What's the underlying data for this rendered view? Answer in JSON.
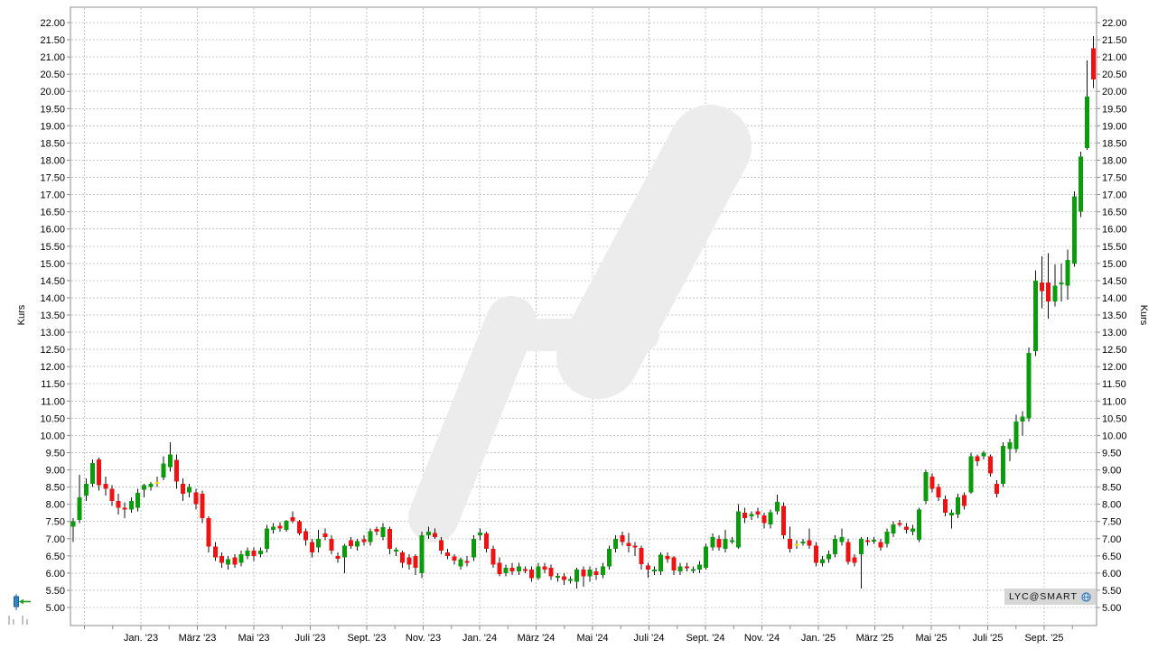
{
  "chart_data": {
    "type": "candlestick",
    "title": "",
    "ylabel": "Kurs",
    "ylim": [
      5.0,
      22.0
    ],
    "y_step": 0.5,
    "y_tick_format": "0.00",
    "grid": "dashed, both axes, light gray",
    "legend_position": "none",
    "x_tick_labels": [
      "Jan. '23",
      "März '23",
      "Mai '23",
      "Juli '23",
      "Sept. '23",
      "Nov. '23",
      "Jan. '24",
      "März '24",
      "Mai '24",
      "Juli '24",
      "Sept. '24",
      "Nov. '24",
      "Jan. '25",
      "März '25",
      "Mai '25",
      "Juli '25",
      "Sept. '25"
    ],
    "interval": "weekly",
    "colors": {
      "up": "#0c9b0c",
      "down": "#ee1212",
      "unchanged": "#f5e400",
      "wick": "#111111",
      "grid": "#c6c6c6",
      "axis": "#8c8c8c",
      "text": "#000000",
      "watermark": "#ececec",
      "background": "#ffffff",
      "badge_bg": "#d6d6d6"
    },
    "candles_format": [
      "open",
      "high",
      "low",
      "close"
    ],
    "candles": [
      [
        7.35,
        7.6,
        6.9,
        7.5
      ],
      [
        7.55,
        8.85,
        7.45,
        8.2
      ],
      [
        8.25,
        8.75,
        8.1,
        8.6
      ],
      [
        8.6,
        9.3,
        8.5,
        9.2
      ],
      [
        9.3,
        9.35,
        8.4,
        8.55
      ],
      [
        8.6,
        8.8,
        8.25,
        8.45
      ],
      [
        8.45,
        8.55,
        7.95,
        8.1
      ],
      [
        8.1,
        8.3,
        7.7,
        7.9
      ],
      [
        7.9,
        8.05,
        7.6,
        7.85
      ],
      [
        7.85,
        8.2,
        7.75,
        8.1
      ],
      [
        7.9,
        8.45,
        7.8,
        8.33
      ],
      [
        8.42,
        8.6,
        8.2,
        8.55
      ],
      [
        8.5,
        8.65,
        8.4,
        8.6
      ],
      [
        8.65,
        8.8,
        8.5,
        8.65
      ],
      [
        8.78,
        9.4,
        8.7,
        9.18
      ],
      [
        9.08,
        9.8,
        8.95,
        9.45
      ],
      [
        9.29,
        9.45,
        8.45,
        8.66
      ],
      [
        8.6,
        8.75,
        8.1,
        8.3
      ],
      [
        8.35,
        8.6,
        8.2,
        8.5
      ],
      [
        8.35,
        8.45,
        7.85,
        8.0
      ],
      [
        8.3,
        8.4,
        7.45,
        7.6
      ],
      [
        7.6,
        7.65,
        6.6,
        6.77
      ],
      [
        6.77,
        6.9,
        6.35,
        6.45
      ],
      [
        6.5,
        6.6,
        6.15,
        6.3
      ],
      [
        6.25,
        6.5,
        6.1,
        6.4
      ],
      [
        6.45,
        6.55,
        6.15,
        6.25
      ],
      [
        6.3,
        6.65,
        6.2,
        6.55
      ],
      [
        6.5,
        6.75,
        6.4,
        6.65
      ],
      [
        6.65,
        6.75,
        6.35,
        6.5
      ],
      [
        6.55,
        6.75,
        6.45,
        6.65
      ],
      [
        6.7,
        7.4,
        6.6,
        7.3
      ],
      [
        7.25,
        7.45,
        7.15,
        7.35
      ],
      [
        7.38,
        7.48,
        7.2,
        7.3
      ],
      [
        7.25,
        7.55,
        7.2,
        7.52
      ],
      [
        7.62,
        7.8,
        7.45,
        7.5
      ],
      [
        7.5,
        7.55,
        7.1,
        7.15
      ],
      [
        7.22,
        7.3,
        6.8,
        6.95
      ],
      [
        6.9,
        7.0,
        6.45,
        6.6
      ],
      [
        6.75,
        7.25,
        6.6,
        7.0
      ],
      [
        7.15,
        7.3,
        6.95,
        7.05
      ],
      [
        7.0,
        7.1,
        6.55,
        6.65
      ],
      [
        6.5,
        6.6,
        6.3,
        6.42
      ],
      [
        6.45,
        6.85,
        6.0,
        6.8
      ],
      [
        6.95,
        7.05,
        6.7,
        6.78
      ],
      [
        6.77,
        7.0,
        6.65,
        6.93
      ],
      [
        6.98,
        7.1,
        6.8,
        6.9
      ],
      [
        6.9,
        7.3,
        6.8,
        7.22
      ],
      [
        7.28,
        7.35,
        7.1,
        7.2
      ],
      [
        7.05,
        7.45,
        6.95,
        7.33
      ],
      [
        7.28,
        7.35,
        6.55,
        6.7
      ],
      [
        6.62,
        6.75,
        6.5,
        6.68
      ],
      [
        6.6,
        6.65,
        6.15,
        6.3
      ],
      [
        6.45,
        6.55,
        6.1,
        6.25
      ],
      [
        6.5,
        6.55,
        5.95,
        6.15
      ],
      [
        6.0,
        7.2,
        5.85,
        7.1
      ],
      [
        7.1,
        7.35,
        7.0,
        7.2
      ],
      [
        7.17,
        7.3,
        7.0,
        7.05
      ],
      [
        6.95,
        7.05,
        6.55,
        6.65
      ],
      [
        6.6,
        6.7,
        6.4,
        6.5
      ],
      [
        6.48,
        6.55,
        6.25,
        6.36
      ],
      [
        6.2,
        6.45,
        6.1,
        6.4
      ],
      [
        6.35,
        6.5,
        6.2,
        6.3
      ],
      [
        6.45,
        7.1,
        6.35,
        7.0
      ],
      [
        7.1,
        7.3,
        6.95,
        7.18
      ],
      [
        7.15,
        7.2,
        6.6,
        6.7
      ],
      [
        6.7,
        6.8,
        6.15,
        6.25
      ],
      [
        6.3,
        6.45,
        5.9,
        5.97
      ],
      [
        6.0,
        6.25,
        5.9,
        6.15
      ],
      [
        6.15,
        6.3,
        5.95,
        6.05
      ],
      [
        6.05,
        6.3,
        5.95,
        6.2
      ],
      [
        6.12,
        6.2,
        6.0,
        6.08
      ],
      [
        6.1,
        6.2,
        5.75,
        5.85
      ],
      [
        5.85,
        6.3,
        5.8,
        6.2
      ],
      [
        6.2,
        6.3,
        6.0,
        6.1
      ],
      [
        6.15,
        6.25,
        5.8,
        5.9
      ],
      [
        5.88,
        6.0,
        5.75,
        5.92
      ],
      [
        5.9,
        6.0,
        5.65,
        5.8
      ],
      [
        5.78,
        5.9,
        5.7,
        5.82
      ],
      [
        5.75,
        6.15,
        5.55,
        6.1
      ],
      [
        6.1,
        6.2,
        5.6,
        5.9
      ],
      [
        5.9,
        6.2,
        5.75,
        6.1
      ],
      [
        6.05,
        6.15,
        5.8,
        5.95
      ],
      [
        5.95,
        6.3,
        5.85,
        6.2
      ],
      [
        6.2,
        6.8,
        6.1,
        6.7
      ],
      [
        6.7,
        7.1,
        6.6,
        7.0
      ],
      [
        7.1,
        7.2,
        6.8,
        6.9
      ],
      [
        6.87,
        7.17,
        6.6,
        6.78
      ],
      [
        6.8,
        6.9,
        6.5,
        6.78
      ],
      [
        6.73,
        6.8,
        6.1,
        6.26
      ],
      [
        6.22,
        6.3,
        5.87,
        6.1
      ],
      [
        6.05,
        6.2,
        5.95,
        6.1
      ],
      [
        6.05,
        6.6,
        5.95,
        6.53
      ],
      [
        6.5,
        6.6,
        6.3,
        6.4
      ],
      [
        6.45,
        6.5,
        5.95,
        6.08
      ],
      [
        6.05,
        6.3,
        5.95,
        6.2
      ],
      [
        6.2,
        6.3,
        6.05,
        6.15
      ],
      [
        6.1,
        6.2,
        6.0,
        6.12
      ],
      [
        6.1,
        6.35,
        6.0,
        6.25
      ],
      [
        6.15,
        6.85,
        6.1,
        6.77
      ],
      [
        6.75,
        7.15,
        6.65,
        7.05
      ],
      [
        7.0,
        7.1,
        6.65,
        6.75
      ],
      [
        6.7,
        7.25,
        6.6,
        7.0
      ],
      [
        6.95,
        7.05,
        6.85,
        6.96
      ],
      [
        6.75,
        8.0,
        6.7,
        7.8
      ],
      [
        7.75,
        7.9,
        7.45,
        7.6
      ],
      [
        7.65,
        7.8,
        7.55,
        7.72
      ],
      [
        7.8,
        7.9,
        7.6,
        7.7
      ],
      [
        7.67,
        7.75,
        7.3,
        7.45
      ],
      [
        7.42,
        7.85,
        7.3,
        7.77
      ],
      [
        7.8,
        8.28,
        7.7,
        8.07
      ],
      [
        7.95,
        8.05,
        7.0,
        7.1
      ],
      [
        7.0,
        7.35,
        6.6,
        6.7
      ],
      [
        6.85,
        6.95,
        6.7,
        6.85
      ],
      [
        6.9,
        7.0,
        6.8,
        6.92
      ],
      [
        6.95,
        7.3,
        6.7,
        6.8
      ],
      [
        6.8,
        6.9,
        6.2,
        6.3
      ],
      [
        6.28,
        6.5,
        6.2,
        6.4
      ],
      [
        6.4,
        6.65,
        6.3,
        6.55
      ],
      [
        6.55,
        7.1,
        6.45,
        7.0
      ],
      [
        6.9,
        7.3,
        6.8,
        7.05
      ],
      [
        6.9,
        7.0,
        6.25,
        6.33
      ],
      [
        6.45,
        6.55,
        6.2,
        6.3
      ],
      [
        6.55,
        7.05,
        5.55,
        7.0
      ],
      [
        6.95,
        7.05,
        6.8,
        6.9
      ],
      [
        6.92,
        7.05,
        6.85,
        6.97
      ],
      [
        6.9,
        7.0,
        6.65,
        6.75
      ],
      [
        6.85,
        7.3,
        6.75,
        7.2
      ],
      [
        7.15,
        7.5,
        7.05,
        7.42
      ],
      [
        7.45,
        7.55,
        7.35,
        7.4
      ],
      [
        7.35,
        7.45,
        7.15,
        7.25
      ],
      [
        7.2,
        7.4,
        7.1,
        7.3
      ],
      [
        6.97,
        7.9,
        6.9,
        7.85
      ],
      [
        8.1,
        9.0,
        8.0,
        8.93
      ],
      [
        8.8,
        8.9,
        8.35,
        8.45
      ],
      [
        8.5,
        8.6,
        8.1,
        8.2
      ],
      [
        8.15,
        8.25,
        7.65,
        7.75
      ],
      [
        7.68,
        7.85,
        7.3,
        7.75
      ],
      [
        7.7,
        8.3,
        7.6,
        8.2
      ],
      [
        8.27,
        8.35,
        7.85,
        7.95
      ],
      [
        8.35,
        9.5,
        8.3,
        9.4
      ],
      [
        9.4,
        9.45,
        9.1,
        9.25
      ],
      [
        9.4,
        9.55,
        9.3,
        9.5
      ],
      [
        9.4,
        9.45,
        8.8,
        8.9
      ],
      [
        8.6,
        8.7,
        8.2,
        8.3
      ],
      [
        8.6,
        9.8,
        8.5,
        9.7
      ],
      [
        9.6,
        9.9,
        9.25,
        9.8
      ],
      [
        9.6,
        10.6,
        9.5,
        10.4
      ],
      [
        10.4,
        10.7,
        10.0,
        10.55
      ],
      [
        10.5,
        12.55,
        10.4,
        12.4
      ],
      [
        12.45,
        14.8,
        12.3,
        14.5
      ],
      [
        14.45,
        15.2,
        13.7,
        14.2
      ],
      [
        14.45,
        15.3,
        13.4,
        13.9
      ],
      [
        13.9,
        14.97,
        13.75,
        14.35
      ],
      [
        14.4,
        15.0,
        13.9,
        14.45
      ],
      [
        14.35,
        15.4,
        13.95,
        15.1
      ],
      [
        15.0,
        17.1,
        14.9,
        16.95
      ],
      [
        16.5,
        18.25,
        16.35,
        18.1
      ],
      [
        18.35,
        20.9,
        18.3,
        19.85
      ],
      [
        21.25,
        21.6,
        20.1,
        20.35
      ]
    ]
  },
  "badge": {
    "label": "LYC@SMART",
    "icon": "globe-icon"
  },
  "toolbar": {
    "icons": [
      "candlestick-tool-icon",
      "volume-bars-icon"
    ]
  }
}
